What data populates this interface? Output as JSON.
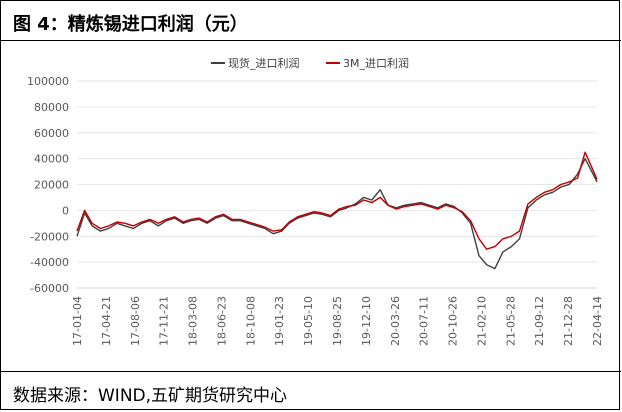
{
  "figure": {
    "title": "图 4：精炼锡进口利润（元）",
    "source": "数据来源：WIND,五矿期货研究中心"
  },
  "chart_data": {
    "type": "line",
    "ylim": [
      -60000,
      100000
    ],
    "yticks": [
      100000,
      80000,
      60000,
      40000,
      20000,
      0,
      -20000,
      -40000,
      -60000
    ],
    "xticks": [
      "17-01-04",
      "17-04-21",
      "17-08-06",
      "17-11-21",
      "18-03-08",
      "18-06-23",
      "18-10-08",
      "19-01-23",
      "19-05-10",
      "19-08-25",
      "19-12-10",
      "20-03-26",
      "20-07-11",
      "20-10-26",
      "21-02-10",
      "21-05-28",
      "21-09-12",
      "21-12-28",
      "22-04-14"
    ],
    "legend_position": "top",
    "series": [
      {
        "name": "现货_进口利润",
        "color": "#404040",
        "x": [
          "17-01-04",
          "17-02-01",
          "17-03-01",
          "17-04-01",
          "17-05-01",
          "17-06-01",
          "17-07-01",
          "17-08-01",
          "17-09-01",
          "17-10-01",
          "17-11-01",
          "17-12-01",
          "18-01-01",
          "18-02-01",
          "18-03-01",
          "18-04-01",
          "18-05-01",
          "18-06-01",
          "18-07-01",
          "18-08-01",
          "18-09-01",
          "18-10-01",
          "18-11-01",
          "18-12-01",
          "19-01-01",
          "19-02-01",
          "19-03-01",
          "19-04-01",
          "19-05-01",
          "19-06-01",
          "19-07-01",
          "19-08-01",
          "19-09-01",
          "19-10-01",
          "19-11-01",
          "19-12-01",
          "20-01-01",
          "20-02-01",
          "20-03-01",
          "20-04-01",
          "20-05-01",
          "20-06-01",
          "20-07-01",
          "20-08-01",
          "20-09-01",
          "20-10-01",
          "20-11-01",
          "20-12-01",
          "21-01-01",
          "21-02-01",
          "21-03-01",
          "21-04-01",
          "21-05-01",
          "21-06-01",
          "21-07-01",
          "21-08-01",
          "21-09-01",
          "21-10-01",
          "21-11-01",
          "21-12-01",
          "22-01-01",
          "22-02-01",
          "22-03-01",
          "22-04-14"
        ],
        "values": [
          -20000,
          -2000,
          -12000,
          -16000,
          -14000,
          -10000,
          -12000,
          -14000,
          -10000,
          -8000,
          -12000,
          -8000,
          -6000,
          -10000,
          -8000,
          -7000,
          -10000,
          -6000,
          -4000,
          -8000,
          -8000,
          -10000,
          -12000,
          -14000,
          -18000,
          -16000,
          -10000,
          -6000,
          -4000,
          -2000,
          -3000,
          -5000,
          0,
          2000,
          5000,
          10000,
          8000,
          16000,
          4000,
          2000,
          4000,
          5000,
          6000,
          4000,
          2000,
          5000,
          3000,
          -2000,
          -10000,
          -35000,
          -42000,
          -45000,
          -32000,
          -28000,
          -22000,
          2000,
          8000,
          12000,
          14000,
          18000,
          20000,
          28000,
          40000,
          22000
        ]
      },
      {
        "name": "3M_进口利润",
        "color": "#c00000",
        "x": [
          "17-01-04",
          "17-02-01",
          "17-03-01",
          "17-04-01",
          "17-05-01",
          "17-06-01",
          "17-07-01",
          "17-08-01",
          "17-09-01",
          "17-10-01",
          "17-11-01",
          "17-12-01",
          "18-01-01",
          "18-02-01",
          "18-03-01",
          "18-04-01",
          "18-05-01",
          "18-06-01",
          "18-07-01",
          "18-08-01",
          "18-09-01",
          "18-10-01",
          "18-11-01",
          "18-12-01",
          "19-01-01",
          "19-02-01",
          "19-03-01",
          "19-04-01",
          "19-05-01",
          "19-06-01",
          "19-07-01",
          "19-08-01",
          "19-09-01",
          "19-10-01",
          "19-11-01",
          "19-12-01",
          "20-01-01",
          "20-02-01",
          "20-03-01",
          "20-04-01",
          "20-05-01",
          "20-06-01",
          "20-07-01",
          "20-08-01",
          "20-09-01",
          "20-10-01",
          "20-11-01",
          "20-12-01",
          "21-01-01",
          "21-02-01",
          "21-03-01",
          "21-04-01",
          "21-05-01",
          "21-06-01",
          "21-07-01",
          "21-08-01",
          "21-09-01",
          "21-10-01",
          "21-11-01",
          "21-12-01",
          "22-01-01",
          "22-02-01",
          "22-03-01",
          "22-04-14"
        ],
        "values": [
          -16000,
          0,
          -10000,
          -14000,
          -12000,
          -9000,
          -10000,
          -12000,
          -9000,
          -7000,
          -10000,
          -7000,
          -5000,
          -9000,
          -7000,
          -6000,
          -9000,
          -5000,
          -3000,
          -7000,
          -7000,
          -9000,
          -11000,
          -13000,
          -16000,
          -15000,
          -9000,
          -5000,
          -3000,
          -1000,
          -2000,
          -4000,
          1000,
          3000,
          4000,
          8000,
          6000,
          10000,
          4000,
          1000,
          3000,
          4000,
          5000,
          3000,
          1000,
          4000,
          2000,
          -1000,
          -8000,
          -22000,
          -30000,
          -28000,
          -22000,
          -20000,
          -16000,
          5000,
          10000,
          14000,
          16000,
          20000,
          22000,
          25000,
          45000,
          24000
        ]
      }
    ]
  }
}
